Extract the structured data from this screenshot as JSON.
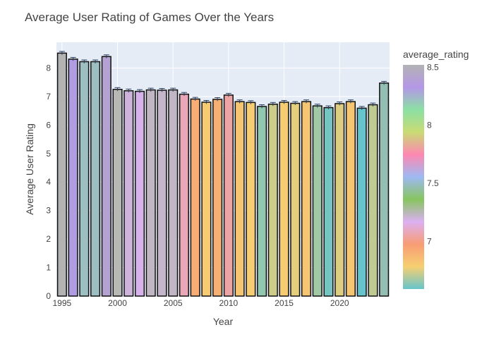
{
  "chart_data": {
    "type": "bar",
    "title": "Average User Rating of Games Over the Years",
    "xlabel": "Year",
    "ylabel": "Average User Rating",
    "x": [
      1995,
      1996,
      1997,
      1998,
      1999,
      2000,
      2001,
      2002,
      2003,
      2004,
      2005,
      2006,
      2007,
      2008,
      2009,
      2010,
      2011,
      2012,
      2013,
      2014,
      2015,
      2016,
      2017,
      2018,
      2019,
      2020,
      2021,
      2022,
      2023,
      2024
    ],
    "values": [
      8.52,
      8.31,
      8.22,
      8.22,
      8.4,
      7.25,
      7.2,
      7.18,
      7.23,
      7.22,
      7.23,
      7.08,
      6.91,
      6.8,
      6.9,
      7.05,
      6.82,
      6.79,
      6.65,
      6.73,
      6.8,
      6.76,
      6.82,
      6.67,
      6.61,
      6.75,
      6.82,
      6.59,
      6.71,
      7.47
    ],
    "error_bars": true,
    "ylim": [
      0,
      8.9
    ],
    "xlim": [
      1994.5,
      2024.5
    ],
    "x_ticks": [
      "1995",
      "2000",
      "2005",
      "2010",
      "2015",
      "2020"
    ],
    "y_ticks": [
      "0",
      "1",
      "2",
      "3",
      "4",
      "5",
      "6",
      "7",
      "8"
    ],
    "legend": {
      "title": "average_rating",
      "placement": "right",
      "range": [
        6.59,
        8.52
      ],
      "ticks": [
        "8.5",
        "8",
        "7.5",
        "7"
      ]
    },
    "colorscale": [
      "#66c5cc",
      "#f6cf71",
      "#f89c74",
      "#dcb0f2",
      "#87c55f",
      "#9eb9f3",
      "#fe88b1",
      "#c9db74",
      "#8be0a4",
      "#b497e7",
      "#b3b3b3"
    ],
    "plot_background": "#e5ecf6",
    "grid": true
  }
}
